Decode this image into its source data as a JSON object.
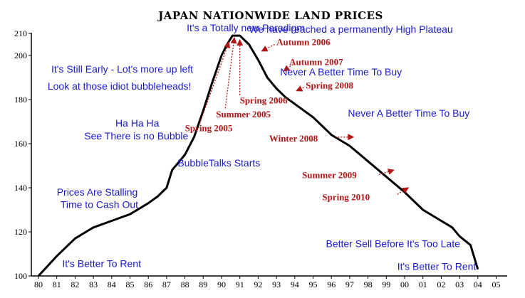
{
  "chart_data": {
    "type": "line",
    "title": "JAPAN NATIONWIDE LAND PRICES",
    "xlabel": "",
    "ylabel": "",
    "x": [
      "80",
      "81",
      "82",
      "83",
      "84",
      "85",
      "86",
      "87",
      "88",
      "89",
      "90",
      "91",
      "92",
      "93",
      "94",
      "95",
      "96",
      "97",
      "98",
      "99",
      "00",
      "01",
      "02",
      "03",
      "04",
      "05"
    ],
    "yticks": [
      100,
      120,
      140,
      160,
      180,
      200,
      210
    ],
    "ylim": [
      100,
      210
    ],
    "grid": false,
    "series": [
      {
        "points": [
          [
            0,
            100
          ],
          [
            1,
            109
          ],
          [
            2,
            117
          ],
          [
            3,
            122
          ],
          [
            4,
            125
          ],
          [
            5,
            128
          ],
          [
            6,
            133
          ],
          [
            6.5,
            136
          ],
          [
            7,
            140
          ],
          [
            7.3,
            148
          ],
          [
            7.5,
            150
          ],
          [
            8,
            155
          ],
          [
            8.5,
            163
          ],
          [
            9,
            175
          ],
          [
            9.5,
            188
          ],
          [
            10,
            200
          ],
          [
            10.3,
            205
          ],
          [
            10.6,
            209
          ],
          [
            11,
            209
          ],
          [
            11.5,
            205
          ],
          [
            12,
            198
          ],
          [
            12.5,
            190
          ],
          [
            13,
            185
          ],
          [
            13.5,
            181
          ],
          [
            14,
            178
          ],
          [
            15,
            172
          ],
          [
            16,
            164
          ],
          [
            17,
            159
          ],
          [
            18,
            152
          ],
          [
            19,
            145
          ],
          [
            20,
            138
          ],
          [
            21,
            130
          ],
          [
            22,
            125
          ],
          [
            22.6,
            122
          ],
          [
            23,
            118
          ],
          [
            23.6,
            114
          ],
          [
            24,
            103
          ]
        ]
      }
    ],
    "annotations": {
      "blue": [
        {
          "text": "It's a Totally new Paradigm",
          "x": 8.1,
          "y": 211
        },
        {
          "text": "We have reached a permanently High Plateau",
          "x": 11.5,
          "y": 210.3
        },
        {
          "text": "It's Still Early - Lot's more up left",
          "x": 0.7,
          "y": 192.3
        },
        {
          "text": "Look at those idiot bubbleheads!",
          "x": 0.5,
          "y": 184.5
        },
        {
          "text": "Ha Ha Ha",
          "x": 4.2,
          "y": 167.8
        },
        {
          "text": "See There is no Bubble",
          "x": 2.5,
          "y": 162
        },
        {
          "text": "BubbleTalks Starts",
          "x": 7.6,
          "y": 149.6
        },
        {
          "text": "Never A Better Time To Buy",
          "x": 13.2,
          "y": 191
        },
        {
          "text": "Never A Better Time To Buy",
          "x": 16.9,
          "y": 172.2
        },
        {
          "text": "Prices Are Stalling",
          "x": 1.0,
          "y": 136.5
        },
        {
          "text": "Time to Cash Out",
          "x": 1.2,
          "y": 130.8
        },
        {
          "text": "Better Sell Before It's Too Late",
          "x": 15.7,
          "y": 113
        },
        {
          "text": "It's Better To Rent",
          "x": 1.3,
          "y": 104.1
        },
        {
          "text": "It's Better To Rent",
          "x": 19.6,
          "y": 102.7
        }
      ],
      "red": [
        {
          "text": "Autumn 2006",
          "x": 13.0,
          "y": 204.6,
          "to": [
            12.2,
            202
          ],
          "from": [
            12.9,
            205
          ]
        },
        {
          "text": "Autumn 2007",
          "x": 13.7,
          "y": 195.6,
          "to": [
            13.4,
            193
          ],
          "from": [
            13.9,
            196
          ]
        },
        {
          "text": "Spring 2008",
          "x": 14.6,
          "y": 185,
          "to": [
            14.1,
            184
          ],
          "from": [
            14.5,
            185.5
          ]
        },
        {
          "text": "Spring 2006",
          "x": 11.0,
          "y": 178.2,
          "to": [
            11,
            207
          ],
          "from": [
            11,
            182
          ]
        },
        {
          "text": "Summer 2005",
          "x": 9.7,
          "y": 171.9,
          "to": [
            10.7,
            208
          ],
          "from": [
            10.2,
            176
          ]
        },
        {
          "text": "Spring 2005",
          "x": 8.0,
          "y": 165.7,
          "to": [
            10.4,
            206
          ],
          "from": [
            8.8,
            169
          ]
        },
        {
          "text": "Winter 2008",
          "x": 12.6,
          "y": 161,
          "to": [
            17.2,
            163
          ],
          "from": [
            16.2,
            163
          ]
        },
        {
          "text": "Summer 2009",
          "x": 14.4,
          "y": 144.3,
          "to": [
            19.4,
            148
          ],
          "from": [
            18.6,
            146
          ]
        },
        {
          "text": "Spring 2010",
          "x": 15.5,
          "y": 134.4,
          "to": [
            20.2,
            140
          ],
          "from": [
            19.6,
            137
          ]
        }
      ]
    }
  }
}
